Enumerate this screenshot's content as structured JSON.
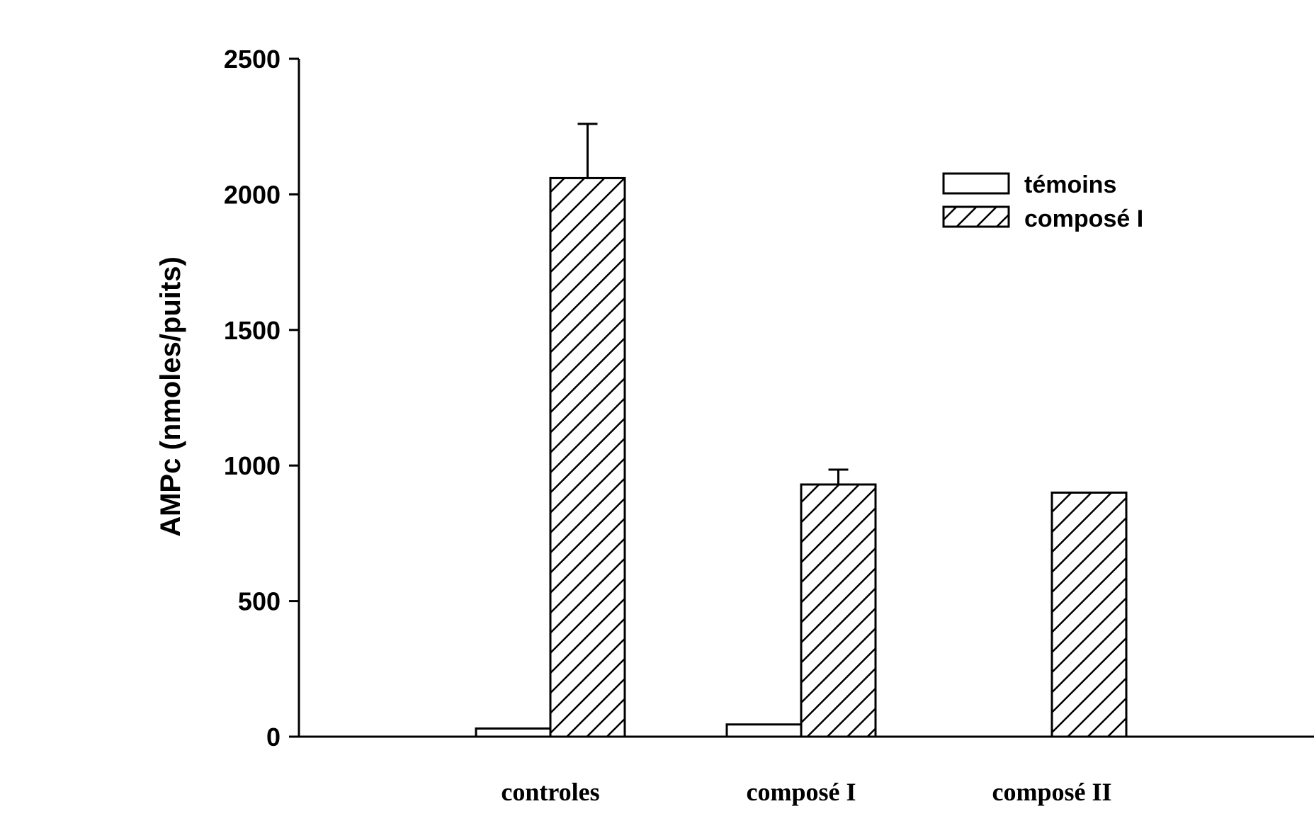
{
  "chart_data": {
    "type": "bar",
    "ylabel": "AMPc (nmoles/puits)",
    "ylim": [
      0,
      2500
    ],
    "yticks": [
      "0",
      "500",
      "1000",
      "1500",
      "2000",
      "2500"
    ],
    "categories": [
      "controles",
      "composé I",
      "composé II"
    ],
    "series": [
      {
        "name": "témoins",
        "values": [
          30,
          45,
          0
        ],
        "error": [
          null,
          null,
          null
        ],
        "fill": "white"
      },
      {
        "name": "composé I",
        "values": [
          2060,
          930,
          900
        ],
        "error": [
          200,
          55,
          null
        ],
        "fill": "hatched"
      }
    ],
    "legend_position": "top-right",
    "grid": false
  }
}
